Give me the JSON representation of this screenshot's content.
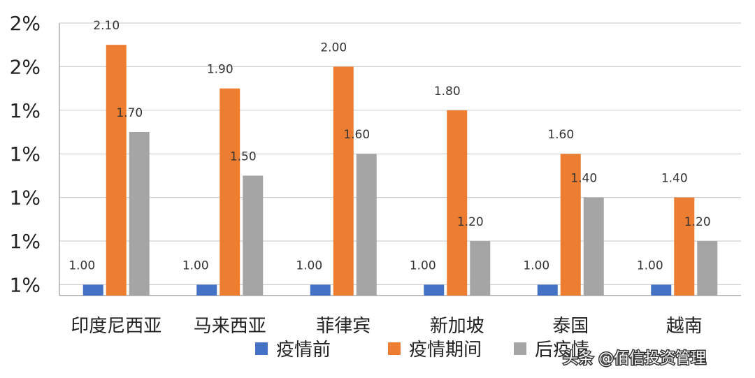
{
  "chart_data": {
    "type": "bar",
    "title": "",
    "xlabel": "",
    "ylabel": "",
    "ylim": [
      0.95,
      2.2
    ],
    "ytick_values": [
      1.0,
      1.2,
      1.4,
      1.6,
      1.8,
      2.0,
      2.2
    ],
    "yticks": [
      "1%",
      "1%",
      "1%",
      "1%",
      "1%",
      "2%",
      "2%"
    ],
    "grid": true,
    "legend": "bottom",
    "categories": [
      "印度尼西亚",
      "马来西亚",
      "菲律宾",
      "新加坡",
      "泰国",
      "越南"
    ],
    "series": [
      {
        "name": "疫情前",
        "color": "#4472C4",
        "values": [
          1.0,
          1.0,
          1.0,
          1.0,
          1.0,
          1.0
        ],
        "labels": [
          "1.00",
          "1.00",
          "1.00",
          "1.00",
          "1.00",
          "1.00"
        ]
      },
      {
        "name": "疫情期间",
        "color": "#ED7D31",
        "values": [
          2.1,
          1.9,
          2.0,
          1.8,
          1.6,
          1.4
        ],
        "labels": [
          "2.10",
          "1.90",
          "2.00",
          "1.80",
          "1.60",
          "1.40"
        ]
      },
      {
        "name": "后疫情",
        "color": "#A5A5A5",
        "values": [
          1.7,
          1.5,
          1.6,
          1.2,
          1.4,
          1.2
        ],
        "labels": [
          "1.70",
          "1.50",
          "1.60",
          "1.20",
          "1.40",
          "1.20"
        ]
      }
    ]
  },
  "watermark": "头条 @佰信投资管理"
}
